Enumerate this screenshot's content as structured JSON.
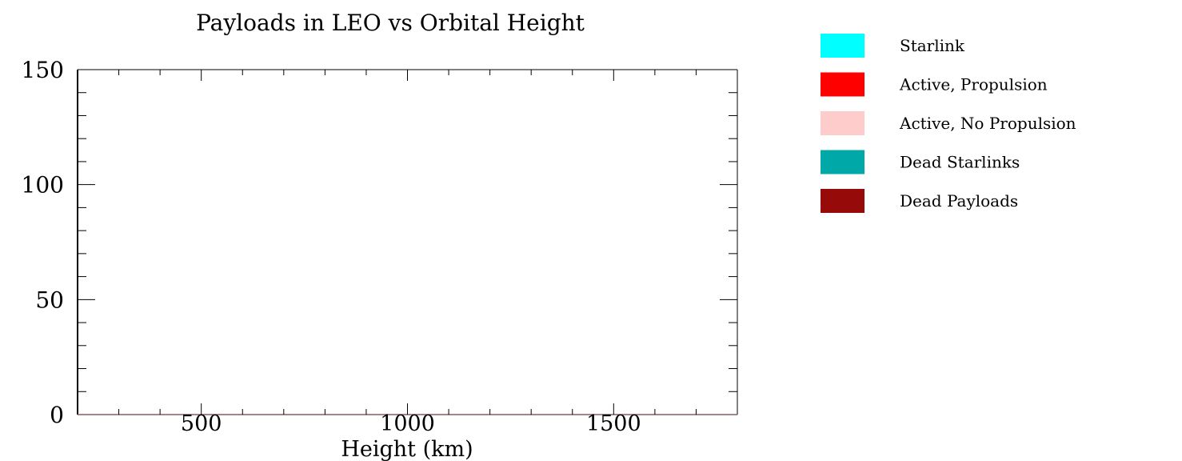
{
  "chart_data": {
    "type": "bar",
    "title": "Payloads in LEO vs Orbital Height",
    "xlabel": "Height (km)",
    "ylabel": "",
    "xlim": [
      200,
      1800
    ],
    "ylim": [
      0,
      150
    ],
    "x_ticks": [
      500,
      1000,
      1500
    ],
    "x_tick_labels": [
      "500",
      "1000",
      "1500"
    ],
    "x_minor_step": 100,
    "y_ticks": [
      0,
      50,
      100,
      150
    ],
    "y_tick_labels": [
      "0",
      "50",
      "100",
      "150"
    ],
    "y_minor_step": 10,
    "grid": false,
    "legend_position": "right",
    "series": [
      {
        "name": "Starlink",
        "color": "#00ffff",
        "values": []
      },
      {
        "name": "Active, Propulsion",
        "color": "#ff0000",
        "values": []
      },
      {
        "name": "Active, No Propulsion",
        "color": "#ffcccc",
        "values": []
      },
      {
        "name": "Dead Starlinks",
        "color": "#00a8a8",
        "values": []
      },
      {
        "name": "Dead Payloads",
        "color": "#960a0a",
        "values": []
      }
    ]
  }
}
